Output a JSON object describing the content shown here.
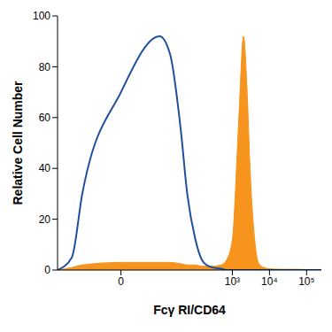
{
  "chart_data": {
    "type": "area",
    "x_label": "Fcγ RI/CD64",
    "y_label": "Relative Cell Number",
    "log": "x",
    "grid": false,
    "xlim": [
      -50,
      250000
    ],
    "xticks": [
      0,
      {
        "value": 1000,
        "label": "10³"
      },
      {
        "value": 10000,
        "label": "10⁴"
      },
      {
        "value": 100000,
        "label": "10⁵"
      }
    ],
    "ylim": [
      0,
      100
    ],
    "yticks": [
      0,
      20,
      40,
      60,
      80,
      100
    ],
    "x": [
      -50,
      -20,
      -10,
      0,
      10,
      20,
      40,
      60,
      100,
      150,
      200,
      300,
      500,
      700,
      1000,
      1500,
      2000,
      2500,
      3000,
      4000,
      5000,
      7000,
      10000,
      20000,
      50000,
      100000,
      250000
    ],
    "series": [
      {
        "type": "area",
        "color": "#f7941d",
        "values": [
          0,
          1,
          2,
          3,
          3,
          3,
          2.5,
          2,
          2,
          1.5,
          1.5,
          1.5,
          2,
          4,
          12,
          60,
          92,
          70,
          40,
          12,
          3,
          1,
          0.5,
          0.3,
          0.3,
          0.2,
          0
        ]
      },
      {
        "type": "line",
        "color": "#1f4e9c",
        "values": [
          0,
          5,
          30,
          70,
          92,
          85,
          55,
          30,
          12,
          4,
          2,
          1,
          0.5,
          0,
          0,
          0,
          0,
          0,
          0,
          0,
          0,
          0,
          0,
          0,
          0,
          0,
          0
        ]
      }
    ]
  }
}
